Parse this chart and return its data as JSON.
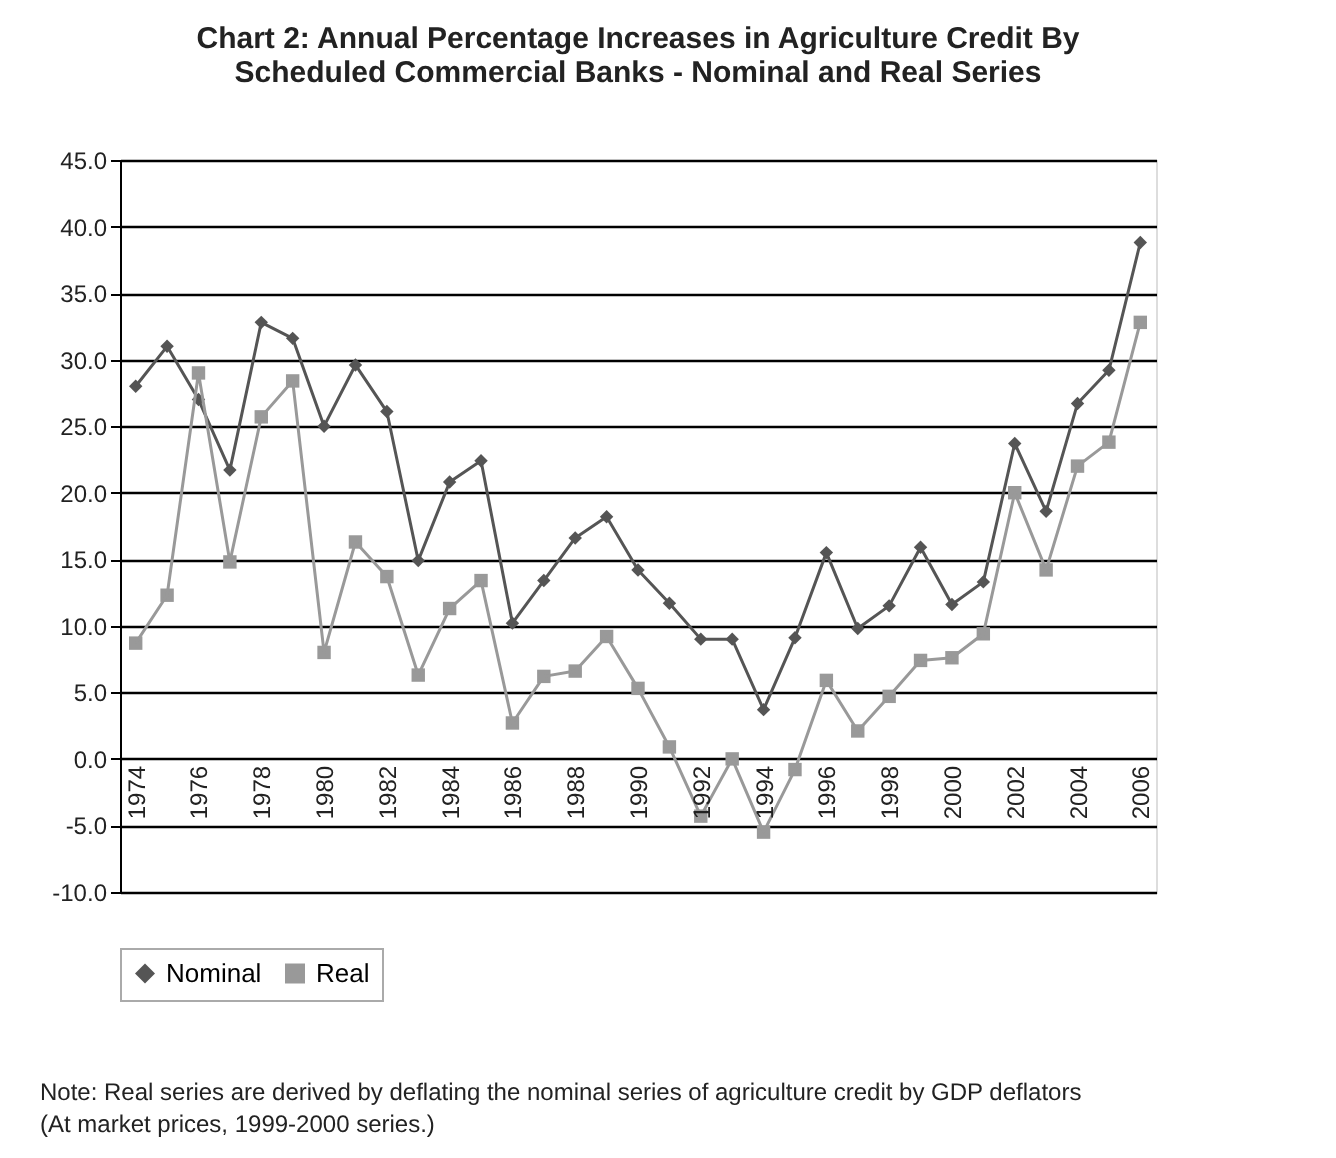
{
  "chart_data": {
    "type": "line",
    "title": "Chart 2: Annual Percentage Increases in Agriculture Credit By Scheduled Commercial Banks - Nominal and Real Series",
    "x": [
      1974,
      1975,
      1976,
      1977,
      1978,
      1979,
      1980,
      1981,
      1982,
      1983,
      1984,
      1985,
      1986,
      1987,
      1988,
      1989,
      1990,
      1991,
      1992,
      1993,
      1994,
      1995,
      1996,
      1997,
      1998,
      1999,
      2000,
      2001,
      2002,
      2003,
      2004,
      2005,
      2006
    ],
    "series": [
      {
        "name": "Nominal",
        "color": "#555555",
        "marker": "diamond",
        "values": [
          28.0,
          31.0,
          27.0,
          21.7,
          32.8,
          31.6,
          25.0,
          29.6,
          26.1,
          14.9,
          20.8,
          22.4,
          10.2,
          13.4,
          16.6,
          18.2,
          14.2,
          11.7,
          9.0,
          9.0,
          3.7,
          9.1,
          15.5,
          9.8,
          11.5,
          15.9,
          11.6,
          13.3,
          23.7,
          18.6,
          26.7,
          29.2,
          38.8
        ]
      },
      {
        "name": "Real",
        "color": "#999999",
        "marker": "square",
        "values": [
          8.7,
          12.3,
          29.0,
          14.8,
          25.7,
          28.4,
          8.0,
          16.3,
          13.7,
          6.3,
          11.3,
          13.4,
          2.7,
          6.2,
          6.6,
          9.2,
          5.3,
          0.9,
          -4.3,
          0.0,
          -5.5,
          -0.8,
          5.9,
          2.1,
          4.7,
          7.4,
          7.6,
          9.4,
          20.0,
          14.2,
          22.0,
          23.8,
          32.8
        ]
      }
    ],
    "xlim": [
      1973.5,
      2006.5
    ],
    "xticks": [
      1974,
      1976,
      1978,
      1980,
      1982,
      1984,
      1986,
      1988,
      1990,
      1992,
      1994,
      1996,
      1998,
      2000,
      2002,
      2004,
      2006
    ],
    "ylim": [
      -10,
      45
    ],
    "yticks": [
      {
        "value": -10,
        "label": "-10.0"
      },
      {
        "value": -5,
        "label": "-5.0"
      },
      {
        "value": 0,
        "label": "0.0"
      },
      {
        "value": 5,
        "label": "5.0"
      },
      {
        "value": 10,
        "label": "10.0"
      },
      {
        "value": 15,
        "label": "15.0"
      },
      {
        "value": 20,
        "label": "20.0"
      },
      {
        "value": 25,
        "label": "25.0"
      },
      {
        "value": 30,
        "label": "30.0"
      },
      {
        "value": 35,
        "label": "35.0"
      },
      {
        "value": 40,
        "label": "40.0"
      },
      {
        "value": 45,
        "label": "45.0"
      }
    ],
    "grid": "y",
    "legend": "bottom",
    "line_style": "solid",
    "annotations": [
      "Note: Real series are derived by deflating the nominal series of agriculture credit by GDP deflators (At market prices, 1999-2000 series.)"
    ]
  }
}
